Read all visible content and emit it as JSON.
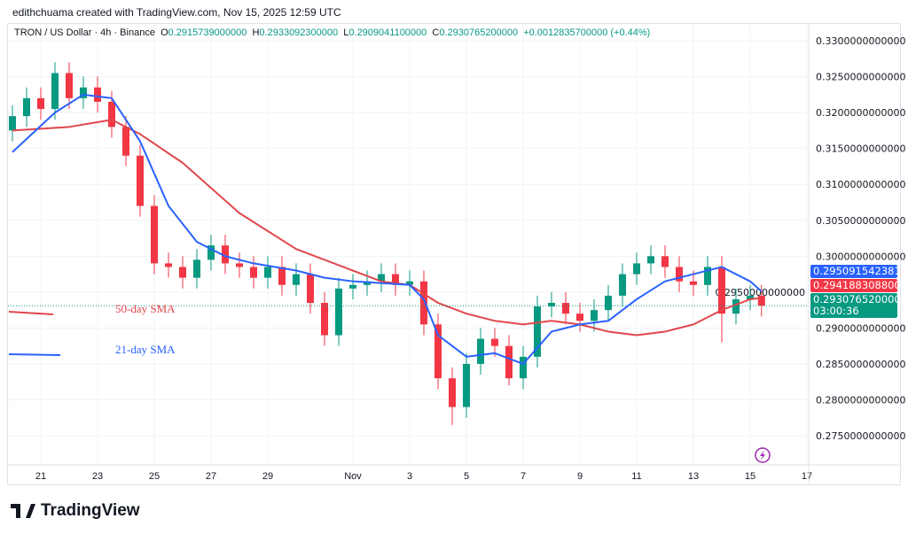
{
  "credit": "edithchuama created with TradingView.com, Nov 15, 2025 12:59 UTC",
  "legend": {
    "symbol": "TRON / US Dollar · 4h · Binance",
    "o_label": "O",
    "o": "0.2915739000000",
    "h_label": "H",
    "h": "0.2933092300000",
    "l_label": "L",
    "l": "0.2909041100000",
    "c_label": "C",
    "c": "0.2930765200000",
    "change": "+0.0012835700000 (+0.44%)"
  },
  "tags": {
    "sma21": "0.2950915423810",
    "sma50": "0.2941883088000",
    "last": "0.2930765200000",
    "countdown": "03:00:36"
  },
  "annotations": {
    "sma50": "50-day SMA",
    "sma21": "21-day SMA"
  },
  "logo": "TradingView",
  "colors": {
    "up": "#089981",
    "down": "#f23645",
    "sma21": "#2962ff",
    "sma50": "#e0474c",
    "lightning": "#9c27b0"
  },
  "icons": {
    "lightning": "lightning-icon",
    "logo": "tradingview-logo-icon"
  },
  "chart_data": {
    "type": "candlestick",
    "ylim": [
      0.2725,
      0.3325
    ],
    "y_ticks": [
      "0.3300000000000",
      "0.3250000000000",
      "0.3200000000000",
      "0.3150000000000",
      "0.3100000000000",
      "0.3050000000000",
      "0.3000000000000",
      "0.2950000000000",
      "0.2900000000000",
      "0.2850000000000",
      "0.2800000000000",
      "0.2750000000000"
    ],
    "y_tick_values": [
      0.33,
      0.325,
      0.32,
      0.315,
      0.31,
      0.305,
      0.3,
      0.295,
      0.29,
      0.285,
      0.28,
      0.275
    ],
    "x_ticks": [
      {
        "label": "21",
        "day": 21
      },
      {
        "label": "23",
        "day": 23
      },
      {
        "label": "25",
        "day": 25
      },
      {
        "label": "27",
        "day": 27
      },
      {
        "label": "29",
        "day": 29
      },
      {
        "label": "Nov",
        "day": 32
      },
      {
        "label": "3",
        "day": 34
      },
      {
        "label": "5",
        "day": 36
      },
      {
        "label": "7",
        "day": 38
      },
      {
        "label": "9",
        "day": 40
      },
      {
        "label": "11",
        "day": 42
      },
      {
        "label": "13",
        "day": 44
      },
      {
        "label": "15",
        "day": 46
      },
      {
        "label": "17",
        "day": 48
      }
    ],
    "closes": [
      [
        20.0,
        0.3195
      ],
      [
        20.5,
        0.322
      ],
      [
        21.0,
        0.3205
      ],
      [
        21.5,
        0.3255
      ],
      [
        22.0,
        0.322
      ],
      [
        22.5,
        0.3235
      ],
      [
        23.0,
        0.3215
      ],
      [
        23.5,
        0.318
      ],
      [
        24.0,
        0.314
      ],
      [
        24.5,
        0.307
      ],
      [
        25.0,
        0.299
      ],
      [
        25.5,
        0.2985
      ],
      [
        26.0,
        0.297
      ],
      [
        26.5,
        0.2995
      ],
      [
        27.0,
        0.3015
      ],
      [
        27.5,
        0.299
      ],
      [
        28.0,
        0.2985
      ],
      [
        28.5,
        0.297
      ],
      [
        29.0,
        0.2985
      ],
      [
        29.5,
        0.296
      ],
      [
        30.0,
        0.2975
      ],
      [
        30.5,
        0.2935
      ],
      [
        31.0,
        0.289
      ],
      [
        31.5,
        0.2955
      ],
      [
        32.0,
        0.296
      ],
      [
        32.5,
        0.2965
      ],
      [
        33.0,
        0.2975
      ],
      [
        33.5,
        0.296
      ],
      [
        34.0,
        0.2965
      ],
      [
        34.5,
        0.2905
      ],
      [
        35.0,
        0.283
      ],
      [
        35.5,
        0.279
      ],
      [
        36.0,
        0.285
      ],
      [
        36.5,
        0.2885
      ],
      [
        37.0,
        0.2875
      ],
      [
        37.5,
        0.283
      ],
      [
        38.0,
        0.286
      ],
      [
        38.5,
        0.293
      ],
      [
        39.0,
        0.2935
      ],
      [
        39.5,
        0.292
      ],
      [
        40.0,
        0.291
      ],
      [
        40.5,
        0.2925
      ],
      [
        41.0,
        0.2945
      ],
      [
        41.5,
        0.2975
      ],
      [
        42.0,
        0.299
      ],
      [
        42.5,
        0.3
      ],
      [
        43.0,
        0.2985
      ],
      [
        43.5,
        0.2965
      ],
      [
        44.0,
        0.296
      ],
      [
        44.5,
        0.2985
      ],
      [
        45.0,
        0.292
      ],
      [
        45.5,
        0.294
      ],
      [
        46.0,
        0.2945
      ],
      [
        46.4,
        0.2931
      ]
    ],
    "lows": {
      "31.0": 0.2875,
      "35.5": 0.2765,
      "37.5": 0.282,
      "45.0": 0.288
    },
    "sma21": [
      [
        20,
        0.3145
      ],
      [
        21.5,
        0.32
      ],
      [
        22.5,
        0.3225
      ],
      [
        23.5,
        0.322
      ],
      [
        24.5,
        0.316
      ],
      [
        25.5,
        0.307
      ],
      [
        26.5,
        0.302
      ],
      [
        27.5,
        0.3
      ],
      [
        28.5,
        0.299
      ],
      [
        30,
        0.298
      ],
      [
        31,
        0.297
      ],
      [
        32,
        0.2965
      ],
      [
        34,
        0.296
      ],
      [
        34.5,
        0.294
      ],
      [
        35,
        0.289
      ],
      [
        36,
        0.286
      ],
      [
        37,
        0.2865
      ],
      [
        38,
        0.285
      ],
      [
        39,
        0.2895
      ],
      [
        40,
        0.2905
      ],
      [
        41,
        0.291
      ],
      [
        42,
        0.294
      ],
      [
        43,
        0.2965
      ],
      [
        44,
        0.2975
      ],
      [
        45,
        0.2985
      ],
      [
        46,
        0.2965
      ],
      [
        46.4,
        0.2951
      ]
    ],
    "sma50": [
      [
        20,
        0.3175
      ],
      [
        22,
        0.318
      ],
      [
        23.5,
        0.319
      ],
      [
        24.5,
        0.317
      ],
      [
        26,
        0.313
      ],
      [
        28,
        0.306
      ],
      [
        30,
        0.301
      ],
      [
        32,
        0.298
      ],
      [
        33,
        0.2965
      ],
      [
        34,
        0.296
      ],
      [
        35,
        0.2935
      ],
      [
        36,
        0.292
      ],
      [
        37,
        0.291
      ],
      [
        38,
        0.2905
      ],
      [
        39,
        0.291
      ],
      [
        40,
        0.2905
      ],
      [
        41,
        0.2895
      ],
      [
        42,
        0.289
      ],
      [
        43,
        0.2895
      ],
      [
        44,
        0.2905
      ],
      [
        45,
        0.2925
      ],
      [
        46,
        0.294
      ],
      [
        46.4,
        0.2942
      ]
    ]
  }
}
